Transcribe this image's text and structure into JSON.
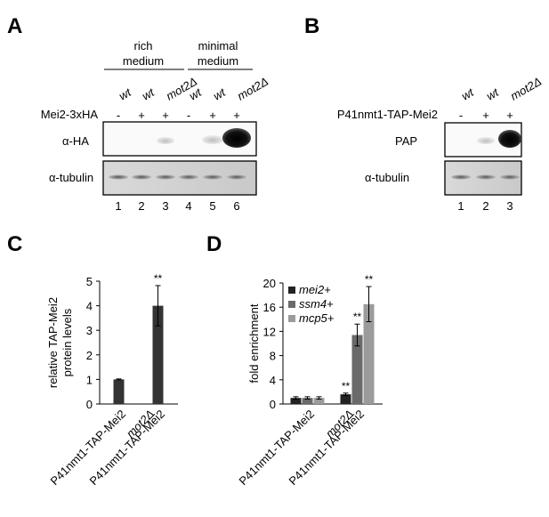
{
  "panels": {
    "A": {
      "letter": "A",
      "group_headers": [
        {
          "line1": "rich",
          "line2": "medium"
        },
        {
          "line1": "minimal",
          "line2": "medium"
        }
      ],
      "strains": [
        "wt",
        "wt",
        "mot2Δ",
        "wt",
        "wt",
        "mot2Δ"
      ],
      "construct_label": "Mei2-3xHA",
      "construct_signs": [
        "-",
        "+",
        "+",
        "-",
        "+",
        "+"
      ],
      "blot_labels": [
        "α-HA",
        "α-tubulin"
      ],
      "lane_numbers": [
        "1",
        "2",
        "3",
        "4",
        "5",
        "6"
      ]
    },
    "B": {
      "letter": "B",
      "strains": [
        "wt",
        "wt",
        "mot2Δ"
      ],
      "construct_label": "P41nmt1-TAP-Mei2",
      "construct_signs": [
        "-",
        "+",
        "+"
      ],
      "blot_labels": [
        "PAP",
        "α-tubulin"
      ],
      "lane_numbers": [
        "1",
        "2",
        "3"
      ]
    },
    "C": {
      "letter": "C"
    },
    "D": {
      "letter": "D"
    }
  },
  "chart_data": [
    {
      "type": "bar",
      "ylabel": "relative TAP-Mei2 protein levels",
      "ylim": [
        0,
        5
      ],
      "yticks": [
        "0",
        "1",
        "2",
        "3",
        "4",
        "5"
      ],
      "categories": [
        {
          "line1": "",
          "line2": "P41nmt1-TAP-Mei2"
        },
        {
          "line1": "mot2Δ",
          "line2": "P41nmt1-TAP-Mei2"
        }
      ],
      "values": [
        1.0,
        4.0
      ],
      "errors": [
        0.02,
        0.82
      ],
      "significance": [
        "",
        "**"
      ],
      "color": "#333333"
    },
    {
      "type": "bar",
      "ylabel": "fold enrichment",
      "ylim": [
        0,
        20
      ],
      "yticks": [
        "0",
        "4",
        "8",
        "12",
        "16",
        "20"
      ],
      "categories": [
        {
          "line1": "",
          "line2": "P41nmt1-TAP-Mei2"
        },
        {
          "line1": "mot2Δ",
          "line2": "P41nmt1-TAP-Mei2"
        }
      ],
      "series": [
        {
          "name": "mei2+",
          "values": [
            1.0,
            1.6
          ],
          "errors": [
            0.2,
            0.2
          ],
          "significance": [
            "",
            "**"
          ],
          "color": "#222222"
        },
        {
          "name": "ssm4+",
          "values": [
            1.0,
            11.4
          ],
          "errors": [
            0.2,
            1.8
          ],
          "significance": [
            "",
            "**"
          ],
          "color": "#6a6a6a"
        },
        {
          "name": "mcp5+",
          "values": [
            1.0,
            16.5
          ],
          "errors": [
            0.2,
            2.9
          ],
          "significance": [
            "",
            "**"
          ],
          "color": "#9b9b9b"
        }
      ],
      "legend_position": "top-left"
    }
  ]
}
